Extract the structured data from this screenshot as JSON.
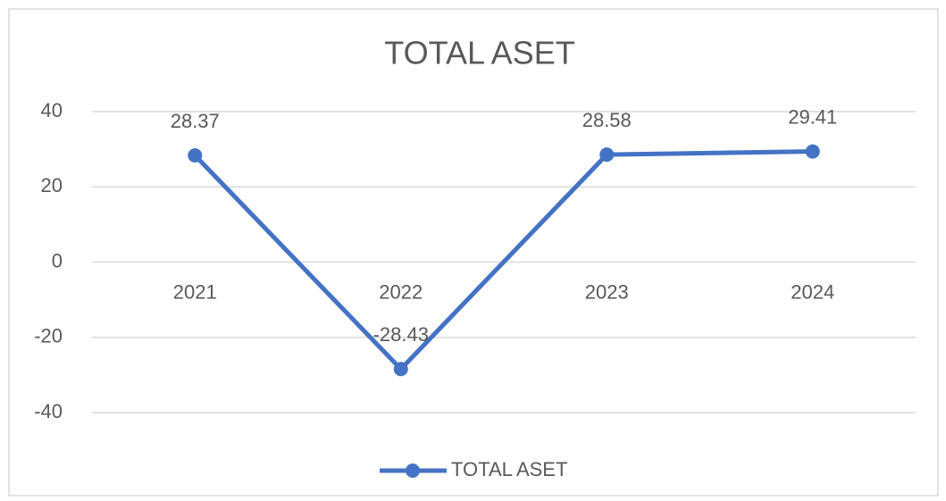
{
  "chart_data": {
    "type": "line",
    "title": "TOTAL ASET",
    "categories": [
      "2021",
      "2022",
      "2023",
      "2024"
    ],
    "series": [
      {
        "name": "TOTAL ASET",
        "color": "#4472c4",
        "values": [
          28.37,
          -28.43,
          28.58,
          29.41
        ]
      }
    ],
    "ylim": [
      -40,
      40
    ],
    "yticks": [
      -40,
      -20,
      0,
      20,
      40
    ],
    "grid": true,
    "legend": "bottom"
  }
}
